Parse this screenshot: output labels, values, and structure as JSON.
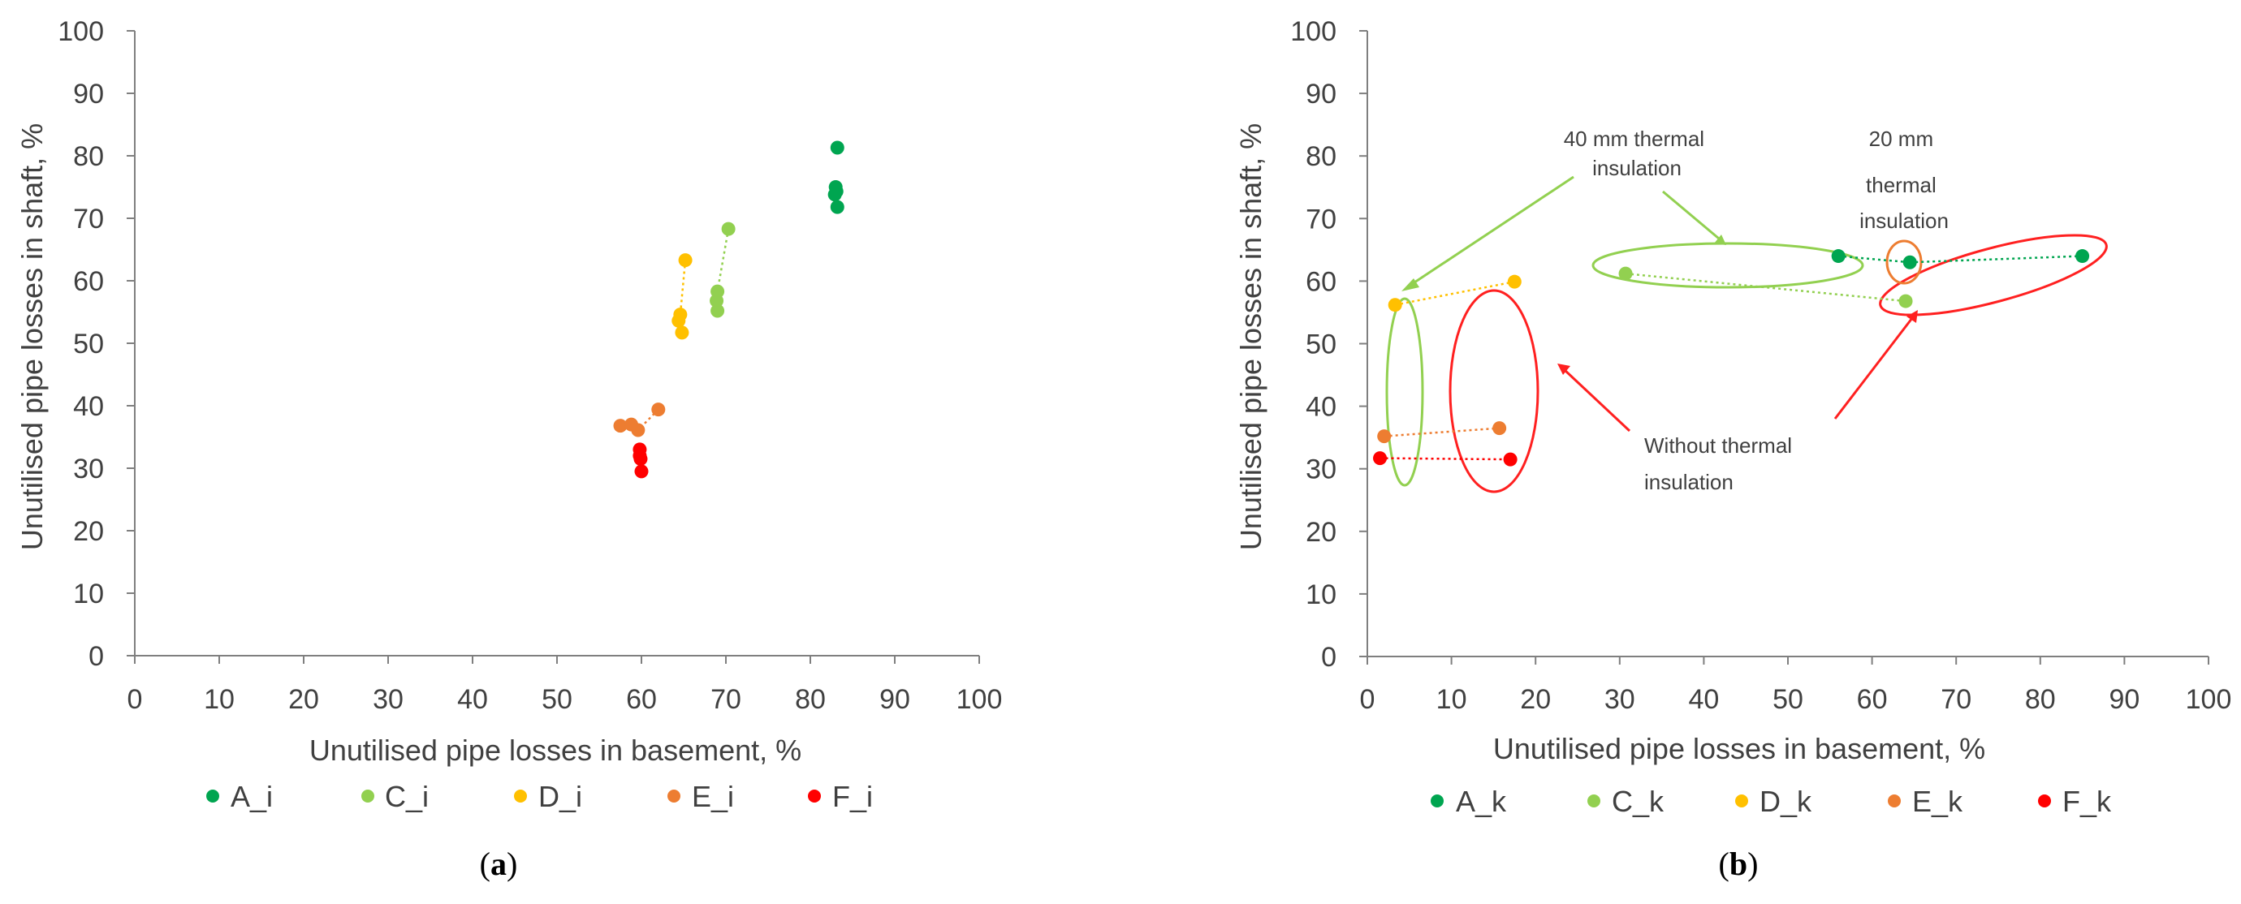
{
  "colors": {
    "A": "#00a550",
    "C": "#92d050",
    "D": "#ffc000",
    "E": "#ed7d31",
    "F": "#ff0000",
    "axis": "#7f7f7f",
    "text": "#404040"
  },
  "chart_data": [
    {
      "type": "scatter",
      "caption": "(a)",
      "caption_letter": "a",
      "xlabel": "Unutilised pipe losses in basement, %",
      "ylabel": "Unutilised pipe losses in shaft, %",
      "xlim": [
        0,
        100
      ],
      "ylim": [
        0,
        100
      ],
      "xticks": [
        0,
        10,
        20,
        30,
        40,
        50,
        60,
        70,
        80,
        90,
        100
      ],
      "yticks": [
        0,
        10,
        20,
        30,
        40,
        50,
        60,
        70,
        80,
        90,
        100
      ],
      "grid": false,
      "series": [
        {
          "name": "A_i",
          "color_key": "A",
          "points": [
            [
              83.2,
              81.3
            ],
            [
              83.0,
              75.0
            ],
            [
              83.1,
              74.3
            ],
            [
              82.9,
              73.8
            ],
            [
              83.2,
              71.8
            ]
          ],
          "connectors": []
        },
        {
          "name": "C_i",
          "color_key": "C",
          "points": [
            [
              70.3,
              68.3
            ],
            [
              69.0,
              58.3
            ],
            [
              68.9,
              56.8
            ],
            [
              69.0,
              55.2
            ]
          ],
          "connectors": [
            [
              0,
              1
            ]
          ]
        },
        {
          "name": "D_i",
          "color_key": "D",
          "points": [
            [
              65.2,
              63.3
            ],
            [
              64.6,
              54.6
            ],
            [
              64.4,
              53.6
            ],
            [
              64.8,
              51.7
            ]
          ],
          "connectors": [
            [
              0,
              1
            ]
          ]
        },
        {
          "name": "E_i",
          "color_key": "E",
          "points": [
            [
              57.5,
              36.8
            ],
            [
              58.8,
              37.0
            ],
            [
              59.6,
              36.1
            ],
            [
              62.0,
              39.4
            ]
          ],
          "connectors": [
            [
              3,
              2
            ]
          ]
        },
        {
          "name": "F_i",
          "color_key": "F",
          "points": [
            [
              59.8,
              33.0
            ],
            [
              59.8,
              32.0
            ],
            [
              59.9,
              31.5
            ],
            [
              60.0,
              29.5
            ]
          ],
          "connectors": []
        }
      ],
      "annotations": []
    },
    {
      "type": "scatter",
      "caption": "(b)",
      "caption_letter": "b",
      "xlabel": "Unutilised pipe losses in basement, %",
      "ylabel": "Unutilised pipe losses in shaft, %",
      "xlim": [
        0,
        100
      ],
      "ylim": [
        0,
        100
      ],
      "xticks": [
        0,
        10,
        20,
        30,
        40,
        50,
        60,
        70,
        80,
        90,
        100
      ],
      "yticks": [
        0,
        10,
        20,
        30,
        40,
        50,
        60,
        70,
        80,
        90,
        100
      ],
      "grid": false,
      "series": [
        {
          "name": "A_k",
          "color_key": "A",
          "points": [
            [
              56.0,
              64.0
            ],
            [
              64.5,
              63.0
            ],
            [
              85.0,
              64.0
            ]
          ],
          "connectors": [
            [
              0,
              1
            ],
            [
              1,
              2
            ]
          ]
        },
        {
          "name": "C_k",
          "color_key": "C",
          "points": [
            [
              30.7,
              61.2
            ],
            [
              64.0,
              56.8
            ]
          ],
          "connectors": [
            [
              0,
              1
            ]
          ]
        },
        {
          "name": "D_k",
          "color_key": "D",
          "points": [
            [
              3.3,
              56.2
            ],
            [
              17.5,
              59.9
            ]
          ],
          "connectors": [
            [
              0,
              1
            ]
          ]
        },
        {
          "name": "E_k",
          "color_key": "E",
          "points": [
            [
              2.0,
              35.2
            ],
            [
              15.7,
              36.5
            ]
          ],
          "connectors": [
            [
              0,
              1
            ]
          ]
        },
        {
          "name": "F_k",
          "color_key": "F",
          "points": [
            [
              1.5,
              31.7
            ],
            [
              17.0,
              31.5
            ]
          ],
          "connectors": [
            [
              0,
              1
            ]
          ]
        }
      ],
      "annotations": [
        {
          "name": "40mm-label",
          "lines": [
            "40 mm thermal",
            "insulation"
          ]
        },
        {
          "name": "20mm-label",
          "lines": [
            "20 mm",
            "thermal",
            "insulation"
          ]
        },
        {
          "name": "without-label",
          "lines": [
            "Without thermal",
            "insulation"
          ]
        }
      ]
    }
  ]
}
